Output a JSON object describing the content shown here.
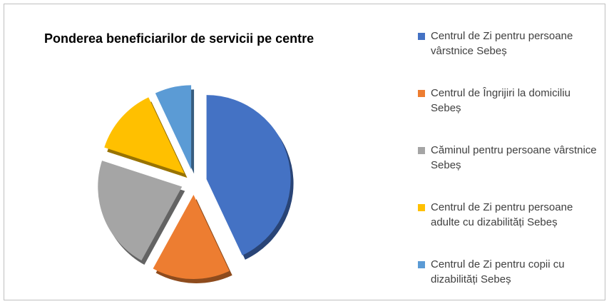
{
  "chart_data": {
    "type": "pie",
    "title": "Ponderea beneficiarilor de servicii pe centre",
    "categories": [
      "Centrul de Zi pentru persoane vârstnice Sebeș",
      "Centrul de Îngrijiri la domiciliu Sebeș",
      "Căminul pentru persoane vârstnice Sebeș",
      "Centrul de Zi pentru persoane adulte cu dizabilități Sebeș",
      "Centrul de Zi pentru copii cu dizabilități Sebeș"
    ],
    "values": [
      43,
      15,
      22,
      13,
      7
    ],
    "colors": [
      "#4472c4",
      "#ed7d31",
      "#a5a5a5",
      "#ffc000",
      "#5b9bd5"
    ],
    "legend": "right"
  }
}
